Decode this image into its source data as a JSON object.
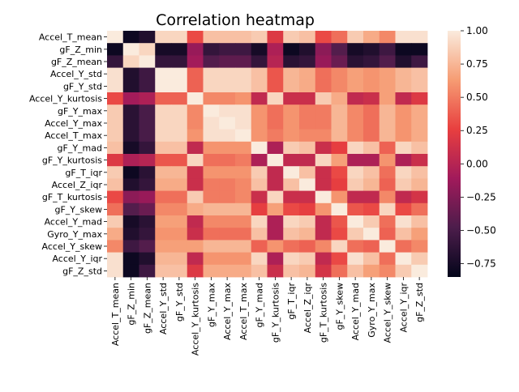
{
  "chart_data": {
    "type": "heatmap",
    "title": "Correlation heatmap",
    "xlabel": "",
    "ylabel": "",
    "labels": [
      "Accel_T_mean",
      "gF_Z_min",
      "gF_Z_mean",
      "Accel_Y_std",
      "gF_Y_std",
      "Accel_Y_kurtosis",
      "gF_Y_max",
      "Accel_Y_max",
      "Accel_T_max",
      "gF_Y_mad",
      "gF_Y_kurtosis",
      "gF_T_iqr",
      "Accel_Z_iqr",
      "gF_T_kurtosis",
      "gF_Y_skew",
      "Accel_Y_mad",
      "Gyro_Y_max",
      "Accel_Y_skew",
      "Accel_Y_iqr",
      "gF_Z_std"
    ],
    "x_tick_labels": [
      "Accel_T_mean",
      "gF_Z_min",
      "gF_Z_mean",
      "Accel_Y_std",
      "gF_Y_std",
      "Accel_Y_kurtosis",
      "gF_Y_max",
      "Accel_Y_max",
      "Accel_T_max",
      "gF_Y_mad",
      "gF_Y_kurtosis",
      "gF_T_iqr",
      "Accel_Z_iqr",
      "gF_T_kurtosis",
      "gF_Y_skew",
      "Accel_Y_mad",
      "Gyro_Y_max",
      "Accel_Y_skew",
      "Accel_Y_iqr",
      "gF_Z_std"
    ],
    "values": [
      [
        1.0,
        -0.8,
        -0.7,
        0.9,
        0.9,
        0.3,
        0.8,
        0.8,
        0.8,
        0.85,
        0.2,
        0.85,
        0.8,
        0.3,
        0.45,
        0.85,
        0.7,
        0.55,
        0.95,
        0.95
      ],
      [
        -0.8,
        1.0,
        0.9,
        -0.75,
        -0.75,
        -0.15,
        -0.6,
        -0.55,
        -0.55,
        -0.75,
        -0.05,
        -0.8,
        -0.7,
        -0.2,
        -0.45,
        -0.75,
        -0.7,
        -0.55,
        -0.8,
        -0.8
      ],
      [
        -0.6,
        0.9,
        1.0,
        -0.6,
        -0.6,
        -0.1,
        -0.45,
        -0.4,
        -0.4,
        -0.6,
        0.0,
        -0.65,
        -0.6,
        -0.15,
        -0.35,
        -0.65,
        -0.6,
        -0.45,
        -0.7,
        -0.55
      ],
      [
        0.95,
        -0.7,
        -0.55,
        1.0,
        1.0,
        0.4,
        0.9,
        0.9,
        0.9,
        0.8,
        0.35,
        0.75,
        0.7,
        0.45,
        0.55,
        0.65,
        0.6,
        0.65,
        0.75,
        0.8
      ],
      [
        0.95,
        -0.7,
        -0.55,
        1.0,
        1.0,
        0.4,
        0.9,
        0.9,
        0.9,
        0.8,
        0.35,
        0.75,
        0.7,
        0.45,
        0.55,
        0.65,
        0.6,
        0.65,
        0.75,
        0.8
      ],
      [
        0.3,
        -0.1,
        -0.05,
        0.4,
        0.4,
        1.0,
        0.55,
        0.55,
        0.6,
        0.05,
        0.9,
        0.1,
        0.1,
        0.85,
        0.7,
        0.05,
        0.1,
        0.65,
        0.05,
        0.2
      ],
      [
        0.85,
        -0.65,
        -0.5,
        0.9,
        0.9,
        0.55,
        1.0,
        0.95,
        0.95,
        0.6,
        0.45,
        0.6,
        0.5,
        0.5,
        0.75,
        0.55,
        0.45,
        0.75,
        0.6,
        0.7
      ],
      [
        0.85,
        -0.65,
        -0.5,
        0.9,
        0.9,
        0.55,
        0.95,
        1.0,
        0.95,
        0.6,
        0.45,
        0.6,
        0.5,
        0.5,
        0.75,
        0.55,
        0.45,
        0.75,
        0.6,
        0.7
      ],
      [
        0.85,
        -0.65,
        -0.5,
        0.9,
        0.9,
        0.6,
        0.95,
        0.95,
        1.0,
        0.6,
        0.5,
        0.6,
        0.55,
        0.55,
        0.75,
        0.55,
        0.45,
        0.75,
        0.6,
        0.7
      ],
      [
        0.8,
        -0.75,
        -0.6,
        0.8,
        0.8,
        0.05,
        0.6,
        0.6,
        0.6,
        1.0,
        -0.05,
        0.85,
        0.8,
        0.1,
        0.25,
        0.9,
        0.8,
        0.4,
        0.9,
        0.8
      ],
      [
        0.2,
        -0.05,
        0.0,
        0.35,
        0.35,
        0.9,
        0.45,
        0.45,
        0.5,
        -0.05,
        1.0,
        0.05,
        0.05,
        0.9,
        0.65,
        -0.05,
        -0.05,
        0.6,
        -0.05,
        0.1
      ],
      [
        0.85,
        -0.8,
        -0.65,
        0.75,
        0.75,
        0.1,
        0.6,
        0.6,
        0.6,
        0.85,
        0.05,
        1.0,
        0.8,
        0.1,
        0.3,
        0.9,
        0.8,
        0.45,
        0.9,
        0.8
      ],
      [
        0.8,
        -0.7,
        -0.6,
        0.7,
        0.7,
        0.1,
        0.5,
        0.5,
        0.55,
        0.8,
        0.05,
        0.8,
        1.0,
        0.1,
        0.25,
        0.85,
        0.75,
        0.4,
        0.85,
        0.75
      ],
      [
        0.3,
        -0.2,
        -0.15,
        0.45,
        0.45,
        0.85,
        0.5,
        0.5,
        0.55,
        0.1,
        0.9,
        0.1,
        0.1,
        1.0,
        0.6,
        0.05,
        0.05,
        0.55,
        0.05,
        0.15
      ],
      [
        0.45,
        -0.45,
        -0.35,
        0.55,
        0.55,
        0.7,
        0.75,
        0.75,
        0.75,
        0.25,
        0.65,
        0.3,
        0.25,
        0.6,
        1.0,
        0.35,
        0.3,
        0.9,
        0.3,
        0.45
      ],
      [
        0.85,
        -0.75,
        -0.65,
        0.65,
        0.65,
        0.05,
        0.55,
        0.55,
        0.55,
        0.9,
        -0.05,
        0.9,
        0.85,
        0.05,
        0.35,
        1.0,
        0.85,
        0.45,
        0.95,
        0.8
      ],
      [
        0.7,
        -0.7,
        -0.6,
        0.6,
        0.6,
        0.1,
        0.45,
        0.45,
        0.45,
        0.8,
        -0.05,
        0.8,
        0.75,
        0.05,
        0.3,
        0.85,
        1.0,
        0.4,
        0.8,
        0.65
      ],
      [
        0.55,
        -0.55,
        -0.45,
        0.65,
        0.65,
        0.65,
        0.75,
        0.75,
        0.75,
        0.4,
        0.6,
        0.45,
        0.4,
        0.55,
        0.9,
        0.45,
        0.4,
        1.0,
        0.45,
        0.55
      ],
      [
        0.95,
        -0.8,
        -0.7,
        0.75,
        0.75,
        0.05,
        0.6,
        0.6,
        0.6,
        0.9,
        -0.05,
        0.9,
        0.85,
        0.05,
        0.3,
        0.95,
        0.8,
        0.45,
        1.0,
        0.85
      ],
      [
        0.95,
        -0.8,
        -0.55,
        0.8,
        0.8,
        0.2,
        0.7,
        0.7,
        0.7,
        0.8,
        0.1,
        0.8,
        0.75,
        0.15,
        0.45,
        0.8,
        0.65,
        0.55,
        0.85,
        1.0
      ]
    ],
    "vmin": -0.85,
    "vmax": 1.0,
    "colorbar_ticks": [
      1.0,
      0.75,
      0.5,
      0.25,
      0.0,
      -0.25,
      -0.5,
      -0.75
    ],
    "colorbar_tick_labels": [
      "1.00",
      "0.75",
      "0.50",
      "0.25",
      "0.00",
      "−0.25",
      "−0.50",
      "−0.75"
    ],
    "colormap": "rocket",
    "colormap_stops": [
      "#03051a",
      "#4c1d4b",
      "#a11a5b",
      "#e83f3f",
      "#f69c73",
      "#faebdd"
    ],
    "grid": false,
    "legend": "colorbar-right"
  }
}
